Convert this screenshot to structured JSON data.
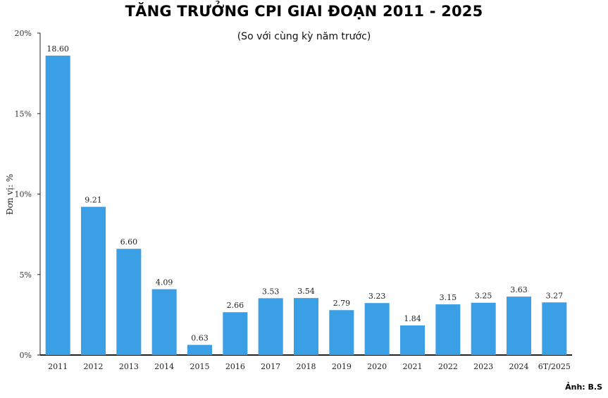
{
  "chart_data": {
    "type": "bar",
    "title": "TĂNG TRƯỞNG CPI GIAI ĐOẠN 2011 - 2025",
    "subtitle": "(So với cùng kỳ năm trước)",
    "ylabel": "Đơn vị: %",
    "xlabel": "",
    "ylim": [
      0,
      20
    ],
    "yticks": [
      0,
      5,
      10,
      15,
      20
    ],
    "ytick_labels": [
      "0%",
      "5%",
      "10%",
      "15%",
      "20%"
    ],
    "categories": [
      "2011",
      "2012",
      "2013",
      "2014",
      "2015",
      "2016",
      "2017",
      "2018",
      "2019",
      "2020",
      "2021",
      "2022",
      "2023",
      "2024",
      "6T/2025"
    ],
    "values": [
      18.6,
      9.21,
      6.6,
      4.09,
      0.63,
      2.66,
      3.53,
      3.54,
      2.79,
      3.23,
      1.84,
      3.15,
      3.25,
      3.63,
      3.27
    ],
    "value_labels": [
      "18.60",
      "9.21",
      "6.60",
      "4.09",
      "0.63",
      "2.66",
      "3.53",
      "3.54",
      "2.79",
      "3.23",
      "1.84",
      "3.15",
      "3.25",
      "3.63",
      "3.27"
    ],
    "bar_color": "#3b9fe6",
    "grid": false,
    "legend": "none"
  },
  "credit": "Ảnh: B.S"
}
